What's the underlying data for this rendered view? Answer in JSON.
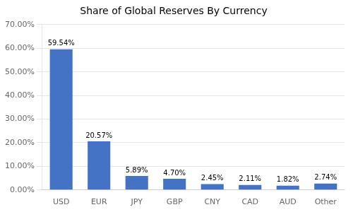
{
  "chart_data": {
    "type": "bar",
    "title": "Share of Global Reserves By Currency",
    "categories": [
      "USD",
      "EUR",
      "JPY",
      "GBP",
      "CNY",
      "CAD",
      "AUD",
      "Other"
    ],
    "values": [
      59.54,
      20.57,
      5.89,
      4.7,
      2.45,
      2.11,
      1.82,
      2.74
    ],
    "value_labels": [
      "59.54%",
      "20.57%",
      "5.89%",
      "4.70%",
      "2.45%",
      "2.11%",
      "1.82%",
      "2.74%"
    ],
    "data_labels": true,
    "color": "#4472C4",
    "ylim": [
      0,
      70
    ],
    "yticks": [
      {
        "value": 0,
        "label": "0.00%"
      },
      {
        "value": 10,
        "label": "10.00%"
      },
      {
        "value": 20,
        "label": "20.00%"
      },
      {
        "value": 30,
        "label": "30.00%"
      },
      {
        "value": 40,
        "label": "40.00%"
      },
      {
        "value": 50,
        "label": "50.00%"
      },
      {
        "value": 60,
        "label": "60.00%"
      },
      {
        "value": 70,
        "label": "70.00%"
      }
    ],
    "grid": true
  }
}
